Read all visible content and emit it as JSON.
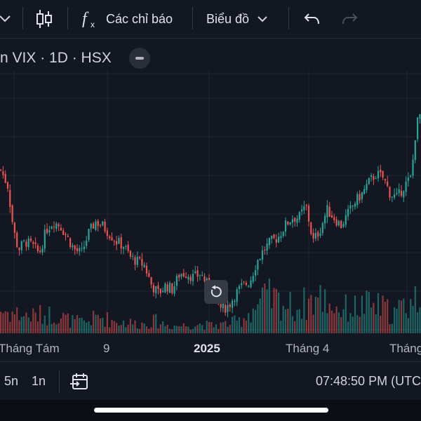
{
  "toolbar": {
    "indicators_label": "Các chỉ báo",
    "chart_label": "Biểu đồ"
  },
  "legend": {
    "symbol_text": "n VIX · 1D · HSX"
  },
  "time_axis": {
    "labels": [
      "Tháng Tám",
      "9",
      "2025",
      "Tháng 4",
      "Tháng"
    ]
  },
  "bottom_bar": {
    "range_5y": "5n",
    "range_1y": "1n",
    "clock": "07:48:50 PM (UTC"
  },
  "colors": {
    "background": "#131722",
    "up": "#26a69a",
    "down": "#ef5350",
    "grid": "#262a35"
  },
  "chart_data": {
    "type": "candlestick",
    "up_color": "#26a69a",
    "down_color": "#ef5350",
    "close_series": [
      [
        0,
        6.1
      ],
      [
        10,
        5.7
      ],
      [
        18,
        4.6
      ],
      [
        25,
        4.1
      ],
      [
        35,
        4.3
      ],
      [
        45,
        4.2
      ],
      [
        55,
        4.0
      ],
      [
        65,
        4.6
      ],
      [
        75,
        4.8
      ],
      [
        85,
        4.7
      ],
      [
        95,
        4.4
      ],
      [
        105,
        4.1
      ],
      [
        115,
        4.0
      ],
      [
        125,
        4.5
      ],
      [
        135,
        4.8
      ],
      [
        145,
        4.7
      ],
      [
        155,
        4.5
      ],
      [
        165,
        4.3
      ],
      [
        175,
        4.2
      ],
      [
        185,
        3.9
      ],
      [
        195,
        3.8
      ],
      [
        205,
        3.7
      ],
      [
        215,
        3.2
      ],
      [
        225,
        3.0
      ],
      [
        235,
        3.2
      ],
      [
        245,
        3.1
      ],
      [
        255,
        3.5
      ],
      [
        265,
        3.5
      ],
      [
        275,
        3.4
      ],
      [
        285,
        3.5
      ],
      [
        295,
        3.2
      ],
      [
        305,
        2.9
      ],
      [
        315,
        2.6
      ],
      [
        325,
        2.7
      ],
      [
        335,
        3.0
      ],
      [
        345,
        3.2
      ],
      [
        355,
        3.3
      ],
      [
        365,
        3.8
      ],
      [
        375,
        4.1
      ],
      [
        385,
        4.3
      ],
      [
        395,
        4.4
      ],
      [
        405,
        4.7
      ],
      [
        415,
        4.9
      ],
      [
        425,
        4.9
      ],
      [
        435,
        5.2
      ],
      [
        445,
        4.3
      ],
      [
        455,
        4.6
      ],
      [
        465,
        5.1
      ],
      [
        475,
        4.9
      ],
      [
        485,
        4.7
      ],
      [
        495,
        5.0
      ],
      [
        505,
        5.3
      ],
      [
        515,
        5.5
      ],
      [
        525,
        5.8
      ],
      [
        535,
        6.0
      ],
      [
        545,
        5.9
      ],
      [
        555,
        5.5
      ],
      [
        565,
        5.4
      ],
      [
        575,
        5.7
      ],
      [
        585,
        5.9
      ],
      [
        592,
        7.2
      ],
      [
        600,
        7.6
      ]
    ],
    "volume_series": [
      [
        0,
        1.5
      ],
      [
        20,
        1.3
      ],
      [
        40,
        1.1
      ],
      [
        60,
        1.2
      ],
      [
        80,
        1.2
      ],
      [
        100,
        0.8
      ],
      [
        120,
        0.7
      ],
      [
        140,
        1.1
      ],
      [
        160,
        0.8
      ],
      [
        180,
        0.7
      ],
      [
        200,
        0.6
      ],
      [
        220,
        0.8
      ],
      [
        240,
        0.5
      ],
      [
        260,
        0.5
      ],
      [
        280,
        0.6
      ],
      [
        300,
        0.5
      ],
      [
        320,
        0.6
      ],
      [
        340,
        0.8
      ],
      [
        360,
        1.6
      ],
      [
        380,
        2.3
      ],
      [
        400,
        2.0
      ],
      [
        420,
        1.6
      ],
      [
        440,
        2.1
      ],
      [
        460,
        2.3
      ],
      [
        480,
        1.6
      ],
      [
        500,
        1.6
      ],
      [
        520,
        1.8
      ],
      [
        540,
        1.7
      ],
      [
        560,
        1.3
      ],
      [
        580,
        1.9
      ],
      [
        600,
        2.5
      ]
    ]
  }
}
